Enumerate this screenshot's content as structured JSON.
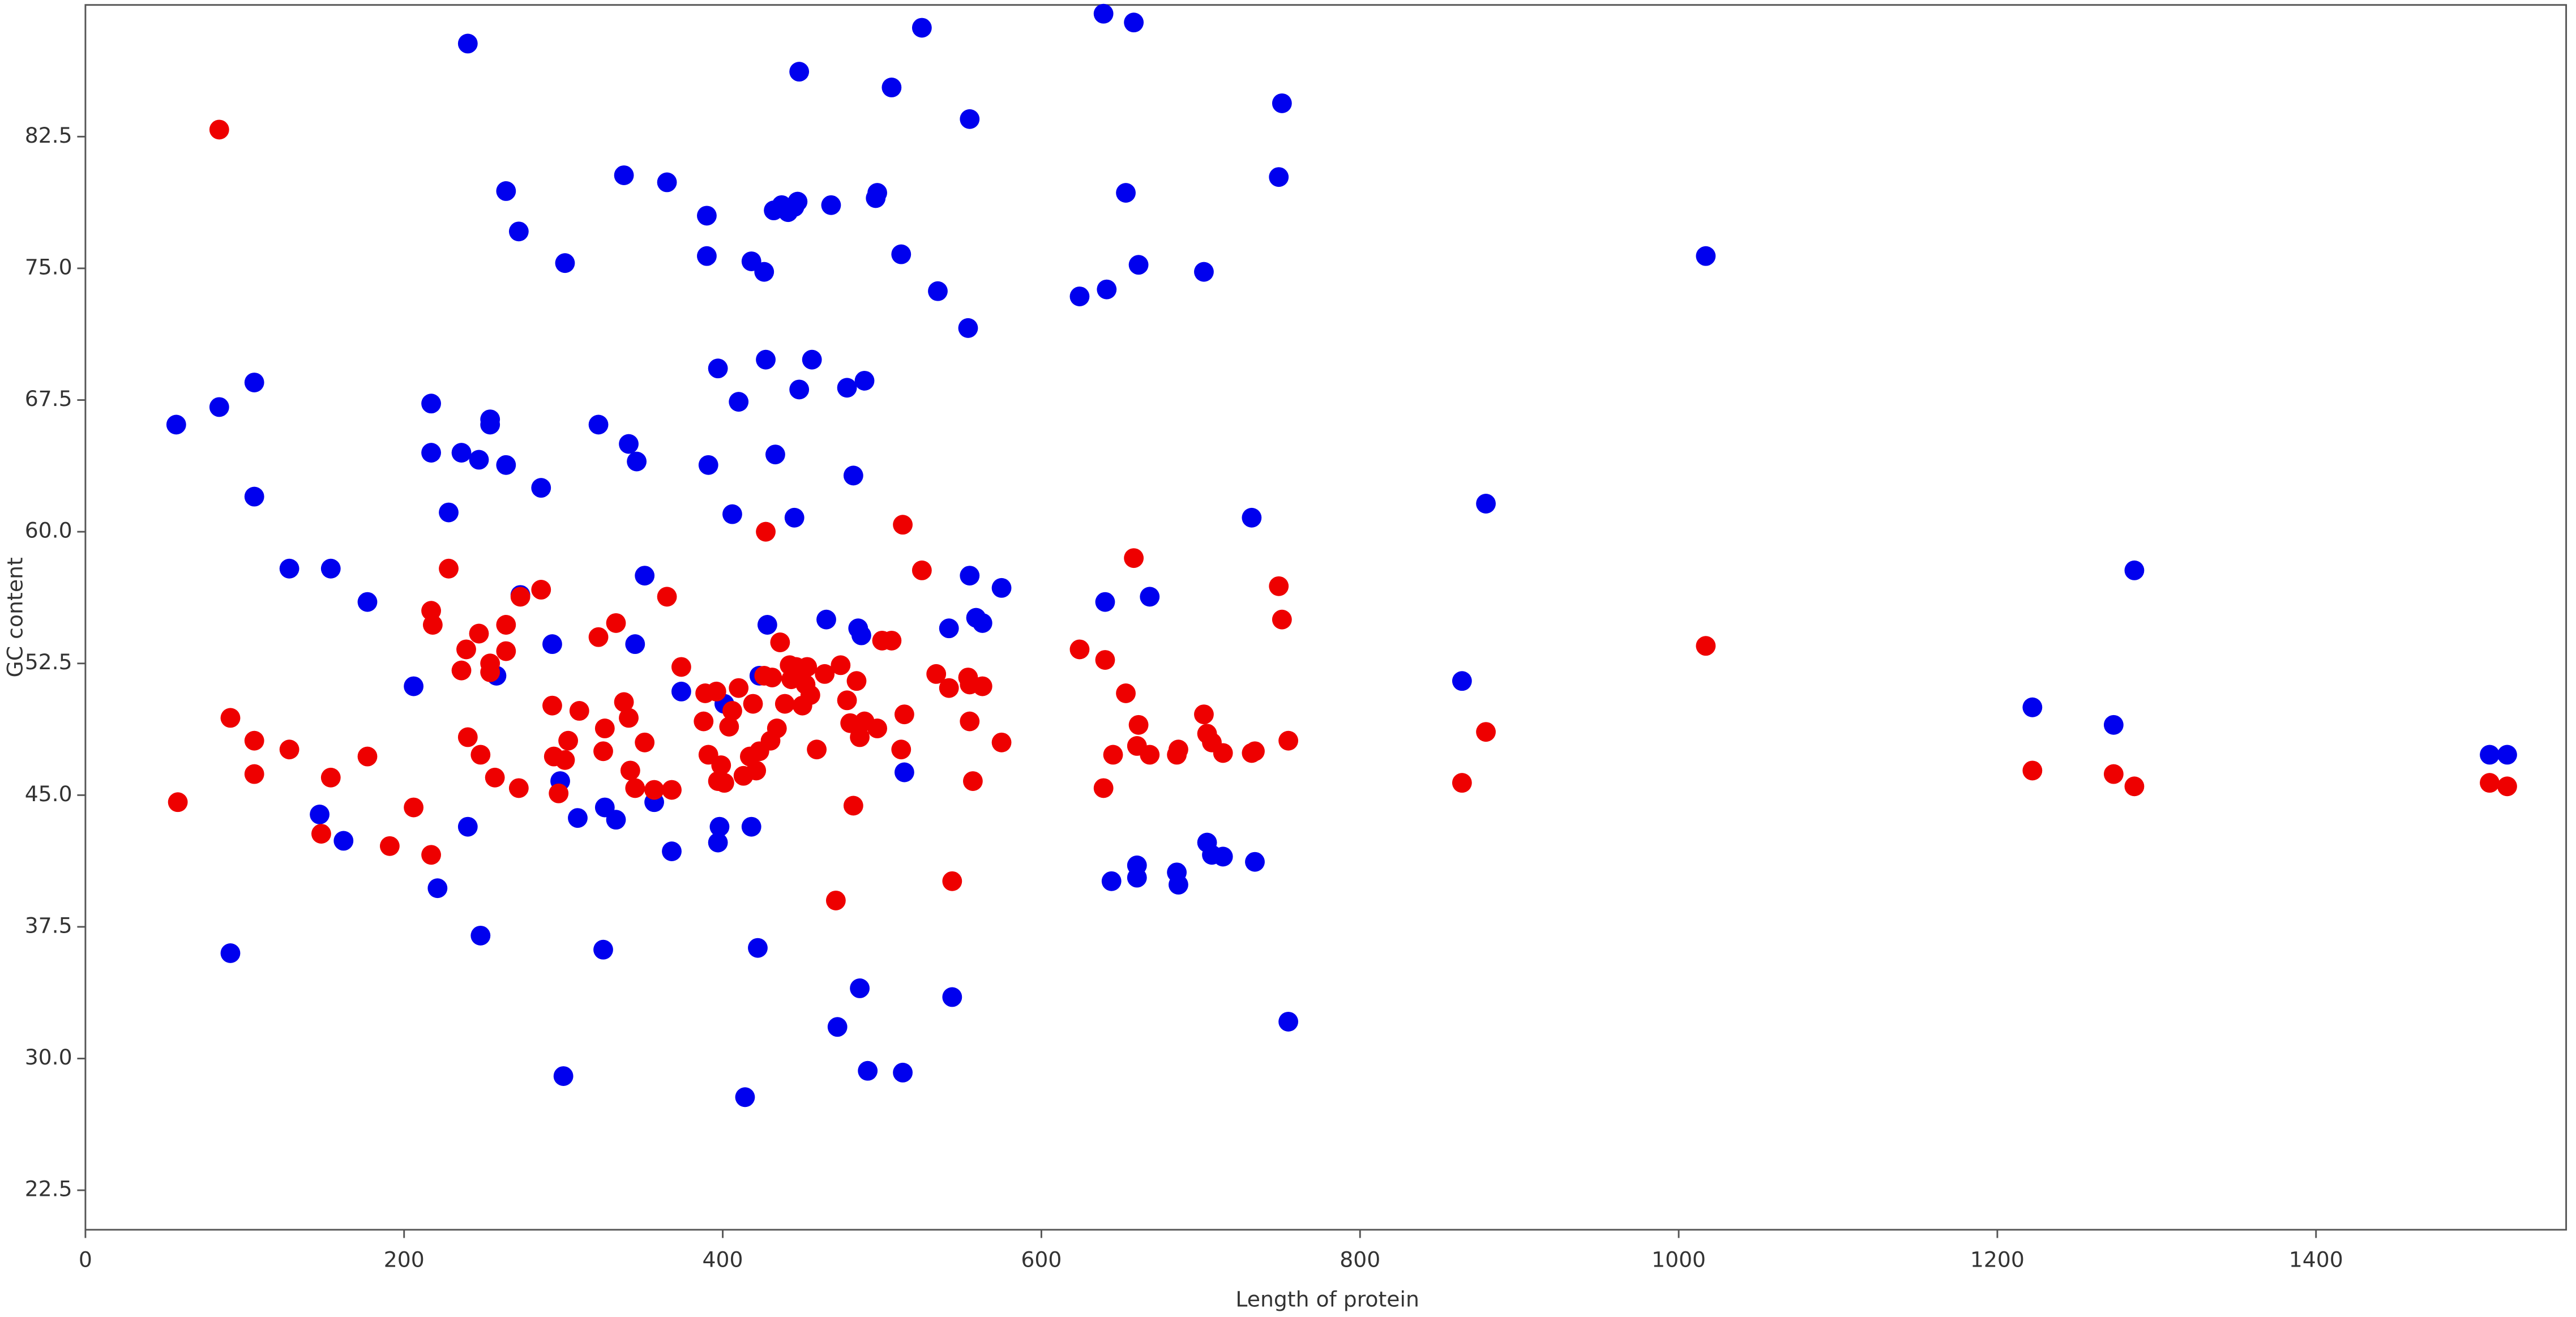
{
  "chart_data": {
    "type": "scatter",
    "x_label": "Length of protein",
    "y_label": "GC content",
    "xlim": [
      0,
      1557
    ],
    "xticks": [
      0,
      200,
      400,
      600,
      800,
      1000,
      1200,
      1400
    ],
    "ylim": [
      20.25,
      90
    ],
    "yticks": [
      22.5,
      {
        "value": 30,
        "label": "30.0"
      },
      37.5,
      {
        "value": 45,
        "label": "45.0"
      },
      52.5,
      {
        "value": 60,
        "label": "60.0"
      },
      67.5,
      {
        "value": 75,
        "label": "75.0"
      },
      82.5
    ],
    "series": [
      {
        "color": "#0000ee",
        "x": [
          57,
          84,
          106,
          106,
          91,
          128,
          154,
          147,
          162,
          177,
          206,
          217,
          217,
          221,
          228,
          236,
          240,
          240,
          247,
          248,
          254,
          254,
          258,
          264,
          264,
          272,
          273,
          286,
          293,
          298,
          300,
          301,
          309,
          322,
          325,
          326,
          333,
          338,
          341,
          346,
          345,
          351,
          357,
          365,
          368,
          374,
          390,
          390,
          391,
          397,
          397,
          398,
          401,
          406,
          410,
          414,
          418,
          418,
          422,
          423,
          426,
          427,
          428,
          432,
          433,
          437,
          441,
          445,
          447,
          448,
          445,
          448,
          456,
          465,
          468,
          472,
          478,
          482,
          485,
          486,
          487,
          489,
          491,
          496,
          497,
          506,
          512,
          513,
          514,
          525,
          535,
          542,
          544,
          554,
          555,
          555,
          559,
          563,
          575,
          624,
          639,
          640,
          641,
          644,
          653,
          658,
          660,
          660,
          661,
          668,
          685,
          686,
          702,
          704,
          707,
          714,
          732,
          734,
          749,
          751,
          755,
          864,
          879,
          1017,
          1222,
          1273,
          1286,
          1509,
          1520
        ],
        "values": [
          66.1,
          67.1,
          68.5,
          62.0,
          36.0,
          57.9,
          57.9,
          43.9,
          42.4,
          56.0,
          51.2,
          67.3,
          64.5,
          39.7,
          61.1,
          64.5,
          87.8,
          43.2,
          64.1,
          37.0,
          66.4,
          66.1,
          51.8,
          79.4,
          63.8,
          77.1,
          56.4,
          62.5,
          53.6,
          45.8,
          29.0,
          75.3,
          43.7,
          66.1,
          36.2,
          44.3,
          43.6,
          80.3,
          65.0,
          64.0,
          53.6,
          57.5,
          44.6,
          79.9,
          41.8,
          50.9,
          78.0,
          75.7,
          63.8,
          69.3,
          42.3,
          43.2,
          50.2,
          61.0,
          67.4,
          27.8,
          75.4,
          43.2,
          36.3,
          51.8,
          74.8,
          69.8,
          54.7,
          78.3,
          64.4,
          78.6,
          78.2,
          78.5,
          78.8,
          86.2,
          60.8,
          68.1,
          69.8,
          55.0,
          78.6,
          31.8,
          68.2,
          63.2,
          54.5,
          34.0,
          54.1,
          68.6,
          29.3,
          79.0,
          79.3,
          85.3,
          75.8,
          29.2,
          46.3,
          88.7,
          73.7,
          54.5,
          33.5,
          71.6,
          83.5,
          57.5,
          55.1,
          54.8,
          56.8,
          73.4,
          89.5,
          56.0,
          73.8,
          40.1,
          79.3,
          89.0,
          41.0,
          40.3,
          75.2,
          56.3,
          40.6,
          39.9,
          74.8,
          42.3,
          41.6,
          41.5,
          60.8,
          41.2,
          80.2,
          84.4,
          32.1,
          51.5,
          61.6,
          75.7,
          50.0,
          49.0,
          57.8,
          47.3,
          47.3
        ]
      },
      {
        "color": "#ee0000",
        "x": [
          58,
          84,
          91,
          106,
          106,
          128,
          148,
          154,
          177,
          191,
          206,
          217,
          228,
          217,
          218,
          236,
          239,
          240,
          247,
          248,
          254,
          254,
          257,
          264,
          264,
          272,
          273,
          286,
          293,
          294,
          297,
          301,
          303,
          310,
          322,
          325,
          326,
          333,
          338,
          341,
          342,
          345,
          351,
          357,
          365,
          368,
          374,
          388,
          389,
          391,
          396,
          397,
          399,
          401,
          404,
          406,
          410,
          413,
          417,
          419,
          421,
          423,
          426,
          427,
          430,
          431,
          434,
          436,
          439,
          442,
          443,
          446,
          448,
          450,
          452,
          453,
          455,
          459,
          464,
          471,
          474,
          478,
          480,
          482,
          484,
          486,
          489,
          497,
          500,
          506,
          512,
          514,
          513,
          525,
          534,
          542,
          544,
          554,
          555,
          555,
          557,
          563,
          575,
          624,
          639,
          640,
          645,
          653,
          658,
          660,
          661,
          668,
          685,
          686,
          702,
          704,
          707,
          714,
          732,
          734,
          749,
          751,
          755,
          864,
          879,
          1017,
          1222,
          1273,
          1286,
          1509,
          1520
        ],
        "values": [
          44.6,
          82.9,
          49.4,
          48.1,
          46.2,
          47.6,
          42.8,
          46.0,
          47.2,
          42.1,
          44.3,
          41.6,
          57.9,
          55.5,
          54.7,
          52.1,
          53.3,
          48.3,
          54.2,
          47.3,
          52.5,
          52.0,
          46.0,
          53.2,
          54.7,
          45.4,
          56.3,
          56.7,
          50.1,
          47.2,
          45.1,
          47.0,
          48.1,
          49.8,
          54.0,
          47.5,
          48.8,
          54.8,
          50.3,
          49.4,
          46.4,
          45.4,
          48.0,
          45.3,
          56.3,
          45.3,
          52.3,
          49.2,
          50.8,
          47.3,
          50.9,
          45.8,
          46.7,
          45.7,
          48.9,
          49.8,
          51.1,
          46.1,
          47.2,
          50.2,
          46.4,
          47.5,
          51.8,
          60.0,
          48.1,
          51.7,
          48.8,
          53.7,
          50.2,
          52.4,
          51.6,
          52.3,
          51.8,
          50.1,
          51.3,
          52.3,
          50.7,
          47.6,
          51.9,
          39.0,
          52.4,
          50.4,
          49.1,
          44.4,
          51.5,
          48.3,
          49.2,
          48.8,
          53.8,
          53.8,
          47.6,
          49.6,
          60.4,
          57.8,
          51.9,
          51.1,
          40.1,
          51.7,
          49.2,
          51.3,
          45.8,
          51.2,
          48.0,
          53.3,
          45.4,
          52.7,
          47.3,
          50.8,
          58.5,
          47.8,
          49.0,
          47.3,
          47.3,
          47.6,
          49.6,
          48.5,
          48.0,
          47.4,
          47.4,
          47.5,
          56.9,
          55.0,
          48.1,
          45.7,
          48.6,
          53.5,
          46.4,
          46.2,
          45.5,
          45.7,
          45.5
        ]
      }
    ]
  }
}
